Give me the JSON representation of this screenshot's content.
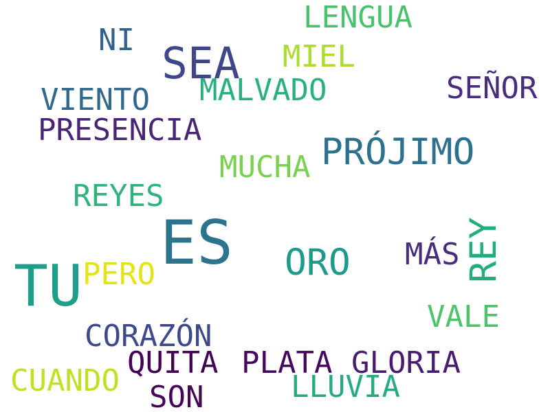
{
  "words": [
    {
      "text": "LENGUA",
      "color": "#4ac16d"
    },
    {
      "text": "NI",
      "color": "#33638d"
    },
    {
      "text": "SEA",
      "color": "#3f4788"
    },
    {
      "text": "MIEL",
      "color": "#addc30"
    },
    {
      "text": "SEÑOR",
      "color": "#472d7b"
    },
    {
      "text": "VIENTO",
      "color": "#31688e"
    },
    {
      "text": "MALVADO",
      "color": "#2ab07f"
    },
    {
      "text": "PRESENCIA",
      "color": "#482576"
    },
    {
      "text": "PRÓJIMO",
      "color": "#2c728e"
    },
    {
      "text": "MUCHA",
      "color": "#7ad151"
    },
    {
      "text": "REYES",
      "color": "#2eb37c"
    },
    {
      "text": "ES",
      "color": "#2c738e"
    },
    {
      "text": "ORO",
      "color": "#1f9a8a"
    },
    {
      "text": "MÁS",
      "color": "#472c7a"
    },
    {
      "text": "REY",
      "color": "#25ab82"
    },
    {
      "text": "TU",
      "color": "#1f9e89"
    },
    {
      "text": "PERO",
      "color": "#e2e418"
    },
    {
      "text": "VALE",
      "color": "#4ec36b"
    },
    {
      "text": "CORAZÓN",
      "color": "#3e4989"
    },
    {
      "text": "QUITA",
      "color": "#440154"
    },
    {
      "text": "PLATA",
      "color": "#46085c"
    },
    {
      "text": "GLORIA",
      "color": "#481d6f"
    },
    {
      "text": "CUANDO",
      "color": "#c2df23"
    },
    {
      "text": "LLUVIA",
      "color": "#25ab82"
    },
    {
      "text": "SON",
      "color": "#450559"
    }
  ]
}
